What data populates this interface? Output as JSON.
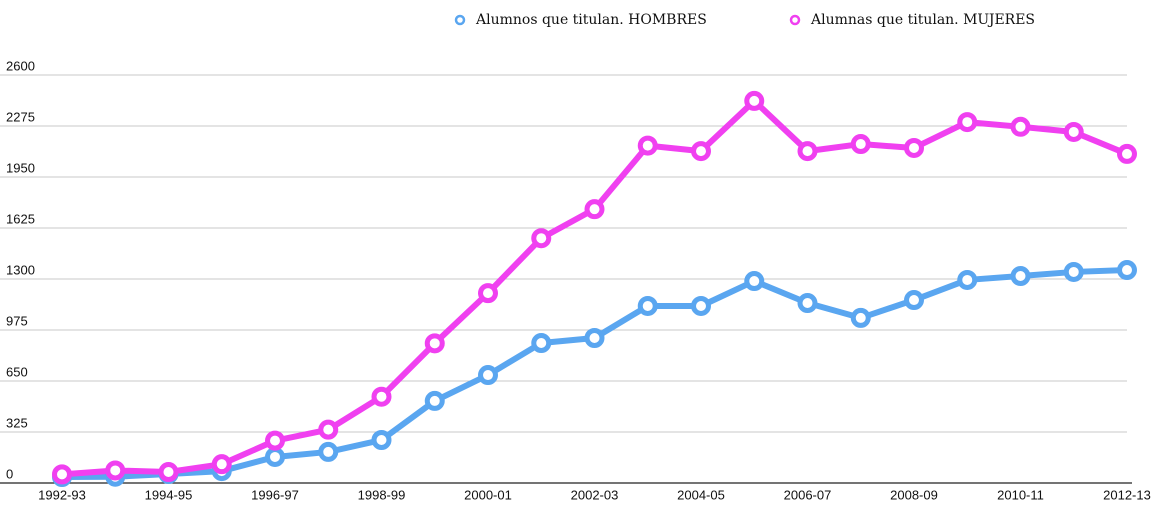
{
  "chart_data": {
    "type": "line",
    "categories": [
      "1992-93",
      null,
      "1994-95",
      null,
      "1996-97",
      null,
      "1998-99",
      null,
      "2000-01",
      null,
      "2002-03",
      null,
      "2004-05",
      null,
      "2006-07",
      null,
      "2008-09",
      null,
      "2010-11",
      null,
      "2012-13"
    ],
    "series": [
      {
        "name": "Alumnos que titulan. HOMBRES",
        "color": "#5aa6f0",
        "values": [
          38,
          40,
          57,
          76,
          166,
          198,
          274,
          523,
          688,
          892,
          924,
          1128,
          1128,
          1287,
          1147,
          1052,
          1166,
          1294,
          1319,
          1345,
          1357
        ]
      },
      {
        "name": "Alumnas que titulan. MUJERES",
        "color": "#f040f0",
        "values": [
          55,
          80,
          70,
          120,
          270,
          340,
          550,
          890,
          1210,
          1560,
          1745,
          2150,
          2115,
          2435,
          2115,
          2160,
          2135,
          2300,
          2270,
          2237,
          2097
        ]
      }
    ],
    "ylim": [
      0,
      2600
    ],
    "yticks": [
      0,
      325,
      650,
      975,
      1300,
      1625,
      1950,
      2275,
      2600
    ],
    "grid": true
  }
}
